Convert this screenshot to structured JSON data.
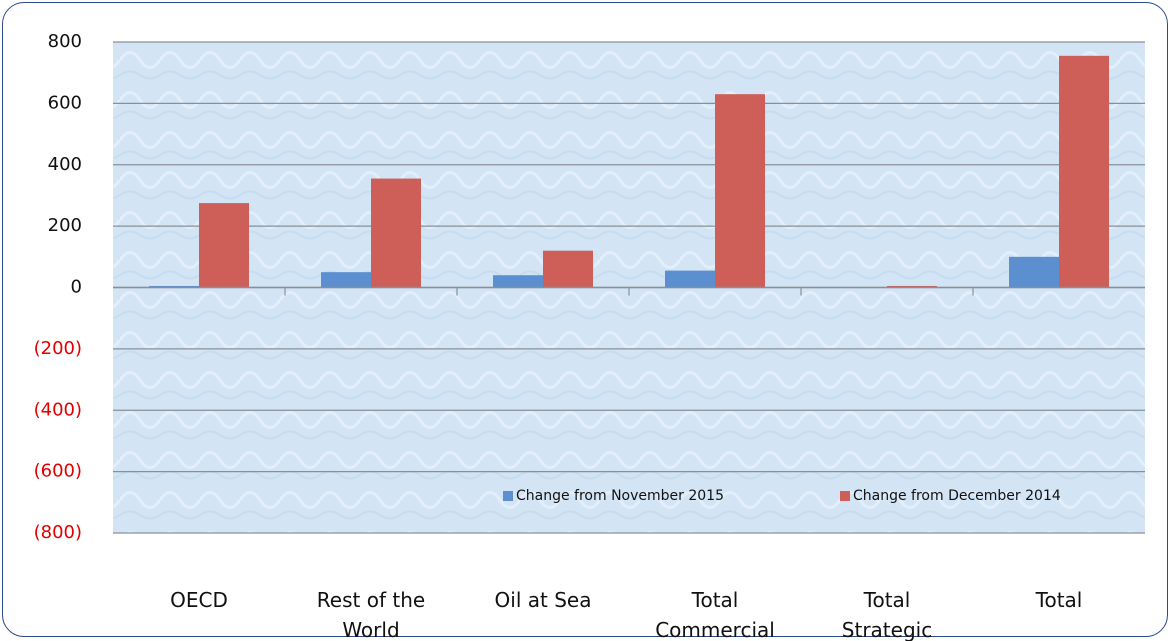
{
  "chart_data": {
    "type": "bar",
    "categories": [
      "OECD",
      "Rest of the World",
      "Oil at Sea",
      "Total Commercial",
      "Total Strategic",
      "Total"
    ],
    "series": [
      {
        "name": "Change from November 2015",
        "color": "#5b8fd0",
        "values": [
          5,
          50,
          40,
          55,
          0,
          100
        ]
      },
      {
        "name": "Change from December 2014",
        "color": "#cd5f58",
        "values": [
          275,
          355,
          120,
          630,
          5,
          755
        ]
      }
    ],
    "ylim": [
      -800,
      800
    ],
    "yticks": [
      800,
      600,
      400,
      200,
      0,
      {
        "value": -200,
        "label": "(200)"
      },
      {
        "value": -400,
        "label": "(400)"
      },
      {
        "value": -600,
        "label": "(600)"
      },
      {
        "value": -800,
        "label": "(800)"
      }
    ],
    "negative_tick_color": "#e00000",
    "grid": true,
    "legend": "lower center"
  }
}
